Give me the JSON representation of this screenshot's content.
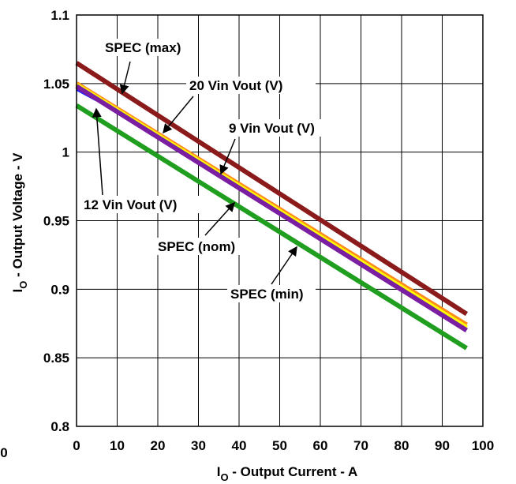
{
  "chart_data": {
    "type": "line",
    "xlabel_main": "I",
    "xlabel_sub": "O",
    "xlabel_rest": " - Output Current - A",
    "ylabel_main": "I",
    "ylabel_sub": "O",
    "ylabel_rest": " - Output Voltage - V",
    "xlim": [
      0,
      100
    ],
    "ylim": [
      0.8,
      1.1
    ],
    "x_ticks": [
      "0",
      "10",
      "20",
      "30",
      "40",
      "50",
      "60",
      "70",
      "80",
      "90",
      "100"
    ],
    "y_ticks": [
      "0.8",
      "0.85",
      "0.9",
      "0.95",
      "1",
      "1.05",
      "1.1"
    ],
    "stray_label": "0",
    "grid": true,
    "series": [
      {
        "name": "SPEC (max)",
        "color": "#8b1a1a",
        "x": [
          0,
          96
        ],
        "y": [
          1.065,
          0.882
        ]
      },
      {
        "name": "20 Vin Vout (V)",
        "color": "#ff8c1a",
        "x": [
          0,
          96
        ],
        "y": [
          1.05,
          0.874
        ]
      },
      {
        "name": "9 Vin Vout (V)",
        "color": "#ffff00",
        "x": [
          0,
          96
        ],
        "y": [
          1.049,
          0.872
        ]
      },
      {
        "name": "12 Vin Vout (V)",
        "color": "#1a1aff",
        "x": [
          0,
          5
        ],
        "y": [
          1.046,
          1.038
        ]
      },
      {
        "name": "SPEC (nom)",
        "color": "#7b1fa2",
        "x": [
          0,
          96
        ],
        "y": [
          1.048,
          0.87
        ]
      },
      {
        "name": "SPEC (min)",
        "color": "#1f9e1f",
        "x": [
          0,
          96
        ],
        "y": [
          1.034,
          0.857
        ]
      }
    ],
    "annotations": [
      {
        "text": "SPEC (max)",
        "color": "#8b1a1a"
      },
      {
        "text": "20 Vin Vout (V)",
        "color": "#ff8c1a"
      },
      {
        "text": "9 Vin Vout (V)",
        "color": "#ffff00"
      },
      {
        "text": "12 Vin Vout (V)",
        "color": "#1a1aff"
      },
      {
        "text": "SPEC (nom)",
        "color": "#7b1fa2"
      },
      {
        "text": "SPEC (min)",
        "color": "#1f9e1f"
      }
    ]
  }
}
